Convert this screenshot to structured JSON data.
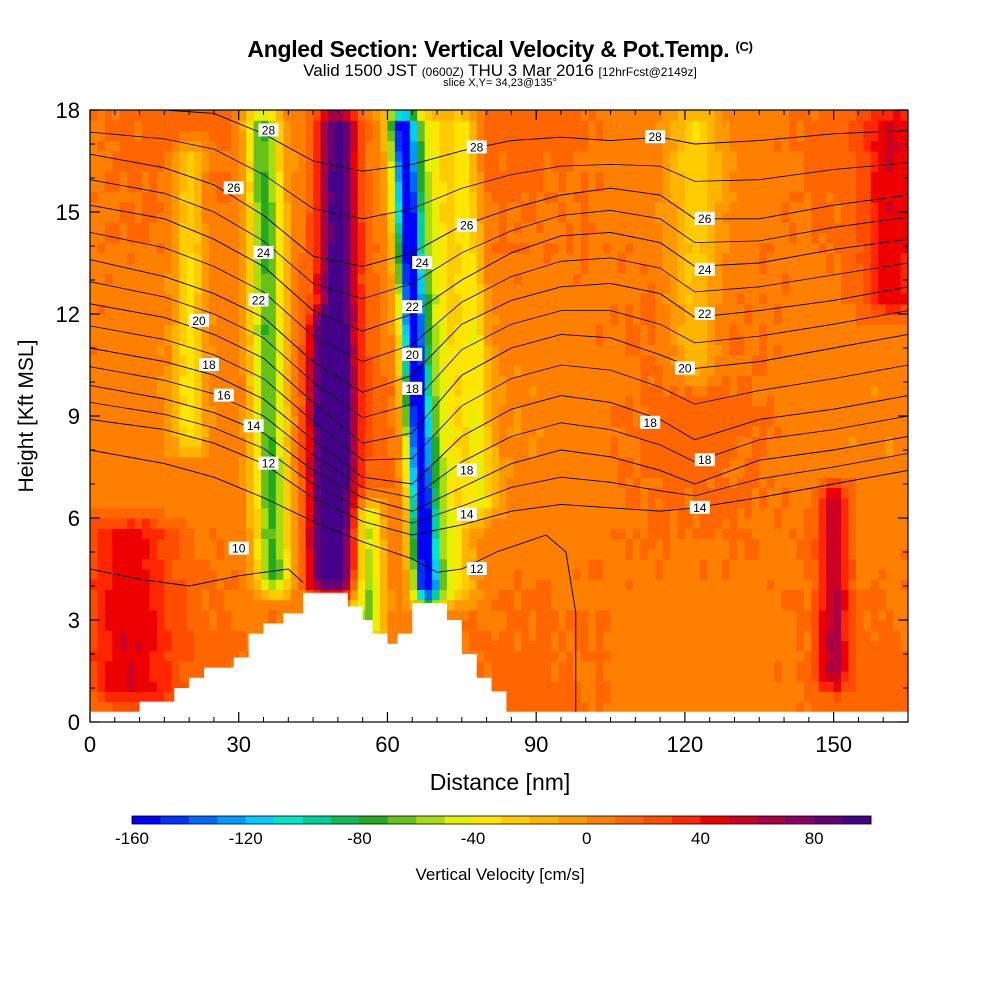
{
  "title": {
    "main": "Angled Section: Vertical Velocity & Pot.Temp.",
    "tag": "(C)",
    "valid_prefix": "Valid 1500 JST",
    "valid_zulu": "(0600Z)",
    "valid_date": "THU 3 Mar 2016",
    "forecast": "[12hrFcst@2149z]",
    "slice": "slice X,Y= 34,23@135°"
  },
  "chart_data": {
    "type": "heatmap",
    "xlabel": "Distance [nm]",
    "ylabel": "Height [Kft MSL]",
    "xlim": [
      0,
      165
    ],
    "ylim": [
      0,
      18
    ],
    "xticks": [
      0,
      30,
      60,
      90,
      120,
      150
    ],
    "yticks": [
      0,
      3,
      6,
      9,
      12,
      15,
      18
    ],
    "colorbar": {
      "label": "Vertical Velocity [cm/s]",
      "range": [
        -160,
        100
      ],
      "step": 10,
      "ticks": [
        -160,
        -120,
        -80,
        -40,
        0,
        40,
        80
      ],
      "colors": [
        "#0000ff",
        "#0033ff",
        "#0066ff",
        "#0099ff",
        "#00ccff",
        "#00e5cc",
        "#00d199",
        "#11bb55",
        "#22aa22",
        "#66c21a",
        "#aadd11",
        "#e6f000",
        "#ffe600",
        "#ffcc00",
        "#ffb400",
        "#ff9900",
        "#ff8000",
        "#ff6600",
        "#ff4d00",
        "#ff2600",
        "#ee0000",
        "#cc0022",
        "#aa0044",
        "#880066",
        "#660077",
        "#440088"
      ]
    },
    "velocity_features": [
      {
        "x": 50,
        "half_width": 4,
        "peak": 95,
        "z_from": 3.8,
        "z_to": 18
      },
      {
        "x": 46,
        "half_width": 2.5,
        "peak": 45,
        "z_from": 3.8,
        "z_to": 12
      },
      {
        "x": 68,
        "half_width": 2.5,
        "peak": -150,
        "z_from": 3.5,
        "z_to": 18
      },
      {
        "x": 72,
        "half_width": 5,
        "peak": -55,
        "z_from": 3.5,
        "z_to": 18
      },
      {
        "x": 37,
        "half_width": 3.5,
        "peak": -80,
        "z_from": 3.8,
        "z_to": 18
      },
      {
        "x": 56,
        "half_width": 3,
        "peak": -70,
        "z_from": 2.5,
        "z_to": 6.5
      },
      {
        "x": 8,
        "half_width": 9,
        "peak": 38,
        "z_from": 0.6,
        "z_to": 6
      },
      {
        "x": 150,
        "half_width": 3,
        "peak": 52,
        "z_from": 1,
        "z_to": 7
      },
      {
        "x": 162,
        "half_width": 6,
        "peak": 38,
        "z_from": 12,
        "z_to": 18
      },
      {
        "x": 20,
        "half_width": 3,
        "peak": -38,
        "z_from": 8,
        "z_to": 17
      },
      {
        "x": 122,
        "half_width": 5,
        "peak": -30,
        "z_from": 10,
        "z_to": 18
      },
      {
        "x": 80,
        "half_width": 3,
        "peak": -40,
        "z_from": 6,
        "z_to": 18
      }
    ],
    "terrain_profile": [
      [
        0,
        0.3
      ],
      [
        10,
        0.3
      ],
      [
        10,
        0.6
      ],
      [
        17,
        0.6
      ],
      [
        17,
        1.0
      ],
      [
        20,
        1.0
      ],
      [
        20,
        1.3
      ],
      [
        23,
        1.3
      ],
      [
        23,
        1.6
      ],
      [
        29,
        1.6
      ],
      [
        29,
        1.9
      ],
      [
        32,
        1.9
      ],
      [
        32,
        2.6
      ],
      [
        35,
        2.6
      ],
      [
        35,
        2.9
      ],
      [
        39,
        2.9
      ],
      [
        39,
        3.2
      ],
      [
        43,
        3.2
      ],
      [
        43,
        3.8
      ],
      [
        52,
        3.8
      ],
      [
        52,
        3.4
      ],
      [
        55,
        3.4
      ],
      [
        55,
        3.0
      ],
      [
        57,
        3.0
      ],
      [
        57,
        2.6
      ],
      [
        60,
        2.6
      ],
      [
        60,
        2.3
      ],
      [
        62,
        2.3
      ],
      [
        62,
        2.6
      ],
      [
        65,
        2.6
      ],
      [
        65,
        3.5
      ],
      [
        72,
        3.5
      ],
      [
        72,
        3.0
      ],
      [
        75,
        3.0
      ],
      [
        75,
        2.0
      ],
      [
        78,
        2.0
      ],
      [
        78,
        1.3
      ],
      [
        81,
        1.3
      ],
      [
        81,
        0.9
      ],
      [
        84,
        0.9
      ],
      [
        84,
        0.3
      ],
      [
        165,
        0.3
      ]
    ],
    "isentropes": [
      {
        "value": 28,
        "points": [
          [
            0,
            18
          ],
          [
            15,
            18
          ],
          [
            25,
            17.9
          ],
          [
            35,
            17.3
          ],
          [
            45,
            16.5
          ],
          [
            55,
            16.2
          ],
          [
            65,
            16.4
          ],
          [
            75,
            16.8
          ],
          [
            85,
            17.1
          ],
          [
            95,
            17.2
          ],
          [
            105,
            17.1
          ],
          [
            115,
            17.2
          ],
          [
            122,
            17.0
          ],
          [
            135,
            17.1
          ],
          [
            150,
            17.3
          ],
          [
            165,
            17.4
          ]
        ],
        "labels": [
          [
            36,
            17.4
          ],
          [
            78,
            16.9
          ],
          [
            114,
            17.2
          ]
        ]
      },
      {
        "value": 26,
        "points": [
          [
            0,
            16.7
          ],
          [
            15,
            16.3
          ],
          [
            25,
            15.8
          ],
          [
            35,
            14.9
          ],
          [
            45,
            13.7
          ],
          [
            55,
            13.4
          ],
          [
            65,
            13.8
          ],
          [
            75,
            14.6
          ],
          [
            85,
            15.1
          ],
          [
            95,
            15.5
          ],
          [
            105,
            15.7
          ],
          [
            115,
            15.5
          ],
          [
            122,
            14.8
          ],
          [
            135,
            14.8
          ],
          [
            150,
            15.2
          ],
          [
            165,
            15.5
          ]
        ],
        "labels": [
          [
            29,
            15.7
          ],
          [
            76,
            14.6
          ],
          [
            124,
            14.8
          ]
        ]
      },
      {
        "value": 24,
        "points": [
          [
            0,
            15.2
          ],
          [
            15,
            14.8
          ],
          [
            25,
            14.2
          ],
          [
            35,
            13.4
          ],
          [
            45,
            12.1
          ],
          [
            55,
            11.5
          ],
          [
            65,
            12.0
          ],
          [
            75,
            13.0
          ],
          [
            85,
            13.8
          ],
          [
            95,
            14.3
          ],
          [
            105,
            14.4
          ],
          [
            115,
            14.1
          ],
          [
            122,
            13.4
          ],
          [
            135,
            13.5
          ],
          [
            150,
            13.9
          ],
          [
            165,
            14.2
          ]
        ],
        "labels": [
          [
            35,
            13.8
          ],
          [
            67,
            13.5
          ],
          [
            124,
            13.3
          ]
        ]
      },
      {
        "value": 22,
        "points": [
          [
            0,
            13.6
          ],
          [
            15,
            13.1
          ],
          [
            25,
            12.6
          ],
          [
            35,
            11.9
          ],
          [
            45,
            10.6
          ],
          [
            55,
            9.7
          ],
          [
            65,
            10.2
          ],
          [
            75,
            11.7
          ],
          [
            85,
            12.4
          ],
          [
            95,
            12.8
          ],
          [
            105,
            12.9
          ],
          [
            115,
            12.6
          ],
          [
            122,
            11.9
          ],
          [
            135,
            12.1
          ],
          [
            150,
            12.4
          ],
          [
            165,
            12.8
          ]
        ],
        "labels": [
          [
            34,
            12.4
          ],
          [
            65,
            12.2
          ],
          [
            124,
            12.0
          ]
        ]
      },
      {
        "value": 20,
        "points": [
          [
            0,
            12.3
          ],
          [
            15,
            11.9
          ],
          [
            25,
            11.4
          ],
          [
            35,
            10.7
          ],
          [
            45,
            9.4
          ],
          [
            55,
            8.2
          ],
          [
            65,
            8.5
          ],
          [
            75,
            10.2
          ],
          [
            85,
            11.0
          ],
          [
            95,
            11.4
          ],
          [
            105,
            11.3
          ],
          [
            115,
            10.8
          ],
          [
            122,
            10.4
          ],
          [
            135,
            10.6
          ],
          [
            150,
            11.0
          ],
          [
            165,
            11.4
          ]
        ],
        "labels": [
          [
            22,
            11.8
          ],
          [
            65,
            10.8
          ],
          [
            120,
            10.4
          ]
        ]
      },
      {
        "value": 18,
        "points": [
          [
            0,
            11.0
          ],
          [
            15,
            10.6
          ],
          [
            25,
            10.2
          ],
          [
            35,
            9.5
          ],
          [
            45,
            8.3
          ],
          [
            55,
            7.2
          ],
          [
            65,
            7.0
          ],
          [
            75,
            8.4
          ],
          [
            85,
            9.2
          ],
          [
            95,
            9.6
          ],
          [
            105,
            9.4
          ],
          [
            115,
            8.9
          ],
          [
            122,
            8.3
          ],
          [
            135,
            8.9
          ],
          [
            150,
            9.2
          ],
          [
            165,
            9.6
          ]
        ],
        "labels": [
          [
            24,
            10.5
          ],
          [
            65,
            9.8
          ],
          [
            76,
            7.4
          ],
          [
            113,
            8.8
          ],
          [
            124,
            7.7
          ]
        ]
      },
      {
        "value": 16,
        "points": [
          [
            0,
            9.9
          ],
          [
            15,
            9.5
          ],
          [
            25,
            9.1
          ],
          [
            35,
            8.5
          ],
          [
            45,
            7.4
          ],
          [
            55,
            6.6
          ],
          [
            65,
            6.2
          ],
          [
            75,
            6.9
          ],
          [
            85,
            7.6
          ],
          [
            95,
            8.0
          ],
          [
            105,
            7.8
          ],
          [
            115,
            7.4
          ],
          [
            122,
            7.0
          ],
          [
            135,
            7.7
          ],
          [
            150,
            8.0
          ],
          [
            165,
            8.4
          ]
        ],
        "labels": [
          [
            27,
            9.6
          ]
        ]
      },
      {
        "value": 14,
        "points": [
          [
            0,
            8.9
          ],
          [
            15,
            8.6
          ],
          [
            25,
            8.2
          ],
          [
            35,
            7.6
          ],
          [
            45,
            6.6
          ],
          [
            55,
            5.9
          ],
          [
            65,
            5.5
          ],
          [
            75,
            5.8
          ],
          [
            85,
            6.2
          ],
          [
            95,
            6.4
          ],
          [
            105,
            6.3
          ],
          [
            115,
            6.2
          ],
          [
            122,
            6.3
          ],
          [
            135,
            6.6
          ],
          [
            150,
            7.0
          ],
          [
            165,
            7.4
          ]
        ],
        "labels": [
          [
            33,
            8.7
          ],
          [
            76,
            6.1
          ],
          [
            123,
            6.3
          ]
        ]
      },
      {
        "value": 12,
        "points": [
          [
            0,
            8.0
          ],
          [
            15,
            7.6
          ],
          [
            25,
            7.2
          ],
          [
            35,
            6.6
          ],
          [
            45,
            5.9
          ],
          [
            55,
            5.3
          ],
          [
            65,
            4.8
          ],
          [
            70,
            4.4
          ],
          [
            75,
            4.5
          ],
          [
            82,
            5.0
          ],
          [
            88,
            5.3
          ],
          [
            92,
            5.5
          ],
          [
            96,
            5.0
          ],
          [
            98,
            3.2
          ],
          [
            98,
            0.3
          ]
        ],
        "labels": [
          [
            36,
            7.6
          ],
          [
            78,
            4.5
          ]
        ]
      },
      {
        "value": 10,
        "points": [
          [
            0,
            4.5
          ],
          [
            10,
            4.2
          ],
          [
            20,
            4.0
          ],
          [
            30,
            4.3
          ],
          [
            40,
            4.5
          ],
          [
            43,
            4.1
          ]
        ],
        "labels": [
          [
            30,
            5.1
          ]
        ]
      }
    ]
  }
}
